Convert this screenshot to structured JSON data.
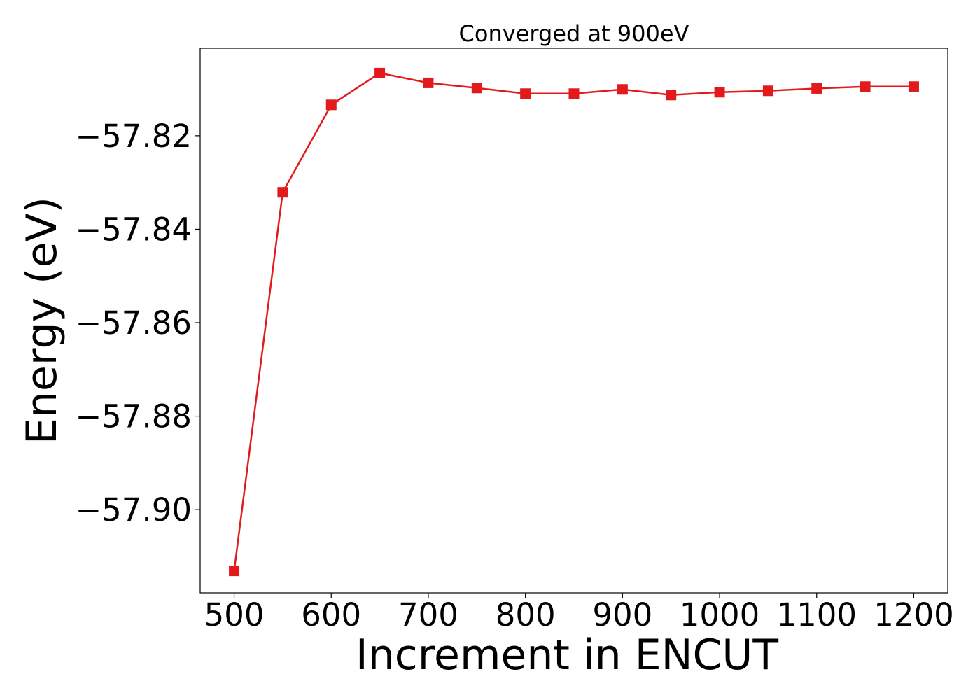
{
  "chart_data": {
    "type": "line",
    "title": "Converged at 900eV",
    "xlabel": "Increment in ENCUT",
    "ylabel": "Energy (eV)",
    "x": [
      500,
      550,
      600,
      650,
      700,
      750,
      800,
      850,
      900,
      950,
      1000,
      1050,
      1100,
      1150,
      1200
    ],
    "series": [
      {
        "values": [
          -57.9131,
          -57.8321,
          -57.8134,
          -57.8066,
          -57.8087,
          -57.8098,
          -57.811,
          -57.811,
          -57.8101,
          -57.8113,
          -57.8107,
          -57.8104,
          -57.8099,
          -57.8095,
          -57.8095
        ],
        "color": "#e31a1c",
        "marker": "square"
      }
    ],
    "xlim": [
      465,
      1235
    ],
    "ylim": [
      -57.9178,
      -57.8013
    ],
    "xticks": [
      500,
      600,
      700,
      800,
      900,
      1000,
      1100,
      1200
    ],
    "xtick_labels": [
      "500",
      "600",
      "700",
      "800",
      "900",
      "1000",
      "1100",
      "1200"
    ],
    "yticks": [
      -57.82,
      -57.84,
      -57.86,
      -57.88,
      -57.9
    ],
    "ytick_labels": [
      "−57.82",
      "−57.84",
      "−57.86",
      "−57.88",
      "−57.90"
    ],
    "grid": false,
    "legend": "none"
  }
}
